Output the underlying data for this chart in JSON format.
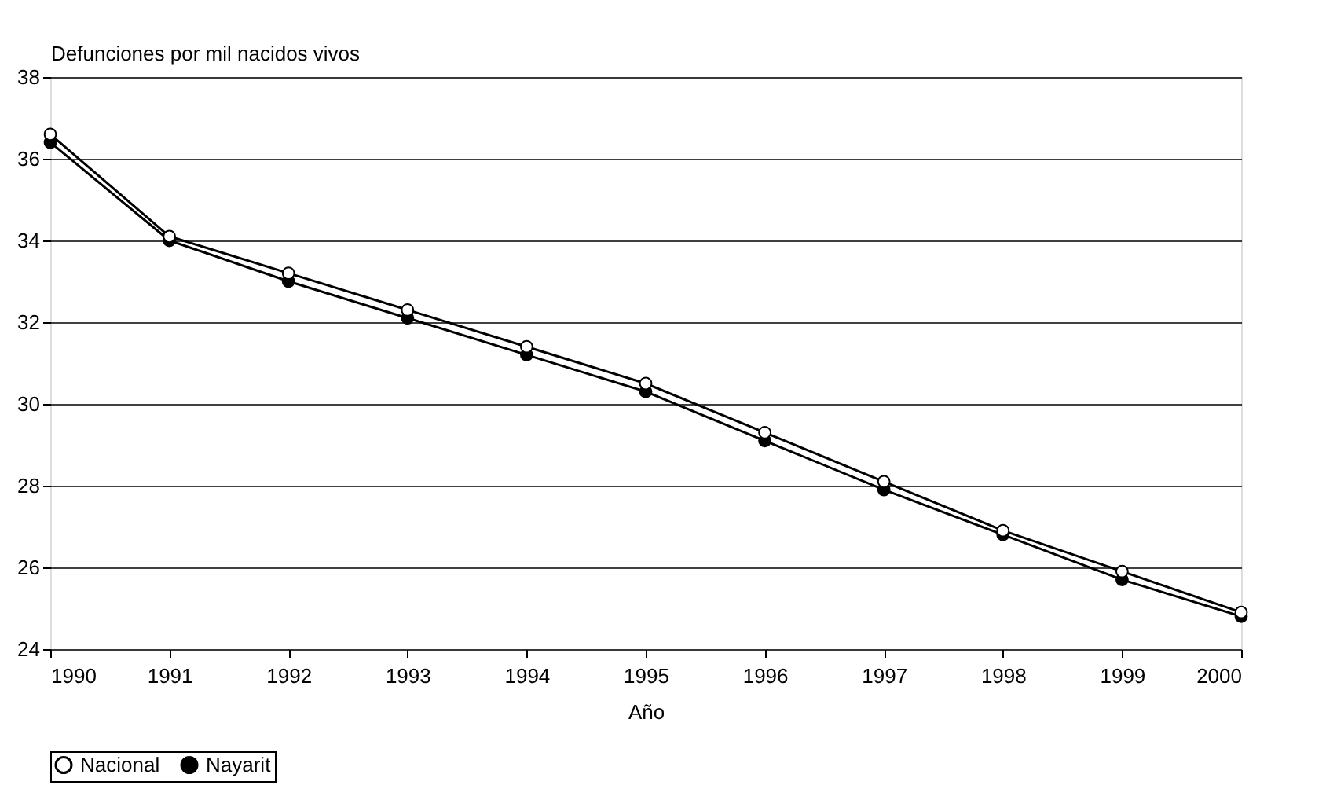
{
  "chart_data": {
    "type": "line",
    "ylabel": "Defunciones por mil nacidos vivos",
    "xlabel": "Año",
    "x": [
      1990,
      1991,
      1992,
      1993,
      1994,
      1995,
      1996,
      1997,
      1998,
      1999,
      2000
    ],
    "series": [
      {
        "name": "Nacional",
        "color": "#000000",
        "values": [
          36.6,
          34.1,
          33.2,
          32.3,
          31.4,
          30.5,
          29.3,
          28.1,
          26.9,
          25.9,
          24.9
        ]
      },
      {
        "name": "Nayarit",
        "color": "#000000",
        "values": [
          36.4,
          34.0,
          33.0,
          32.1,
          31.2,
          30.3,
          29.1,
          27.9,
          26.8,
          25.7,
          24.8
        ]
      }
    ],
    "xlim": [
      1990,
      2000
    ],
    "xticks": [
      1990,
      1991,
      1992,
      1993,
      1994,
      1995,
      1996,
      1997,
      1998,
      1999,
      2000
    ],
    "ylim": [
      24,
      38
    ],
    "yticks": [
      24,
      26,
      28,
      30,
      32,
      34,
      36,
      38
    ],
    "grid": "y",
    "legend": "bottom",
    "marker": "circle",
    "line_style": "solid"
  }
}
